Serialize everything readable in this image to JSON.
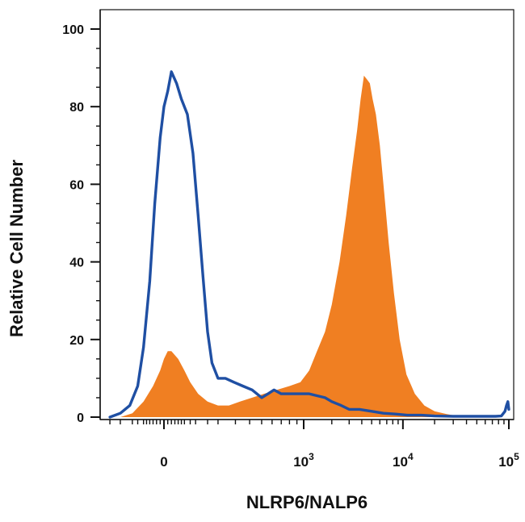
{
  "chart_data": {
    "type": "area",
    "title": "",
    "xlabel": "NLRP6/NALP6",
    "ylabel": "Relative Cell Number",
    "x_scale": "biexponential",
    "xlim": [
      -300,
      100000
    ],
    "ylim": [
      0,
      100
    ],
    "grid": false,
    "legend": "none",
    "y_ticks": [
      {
        "value": 0,
        "label": "0"
      },
      {
        "value": 20,
        "label": "20"
      },
      {
        "value": 40,
        "label": "40"
      },
      {
        "value": 60,
        "label": "60"
      },
      {
        "value": 80,
        "label": "80"
      },
      {
        "value": 100,
        "label": "100"
      }
    ],
    "x_ticks": [
      {
        "value": 0,
        "base": "0",
        "exp": ""
      },
      {
        "value": 1000,
        "base": "10",
        "exp": "3"
      },
      {
        "value": 10000,
        "base": "10",
        "exp": "4"
      },
      {
        "value": 100000,
        "base": "10",
        "exp": "5"
      }
    ],
    "series": [
      {
        "style": "filled",
        "color": "#f07f22",
        "x": [
          -150,
          -100,
          -60,
          -30,
          -10,
          0,
          10,
          20,
          40,
          60,
          80,
          110,
          150,
          200,
          260,
          330,
          420,
          520,
          650,
          800,
          950,
          1150,
          1400,
          1700,
          2000,
          2400,
          2800,
          3200,
          3600,
          3900,
          4200,
          4500,
          4800,
          5100,
          5500,
          6000,
          6600,
          7300,
          8200,
          9300,
          10800,
          13000,
          16000,
          20000,
          26000,
          33000,
          40000
        ],
        "y": [
          0,
          1,
          4,
          8,
          12,
          15,
          17,
          17,
          15,
          12,
          9,
          6,
          4,
          3,
          3,
          4,
          5,
          6,
          7,
          8,
          9,
          12,
          17,
          22,
          29,
          40,
          52,
          64,
          74,
          82,
          88,
          87,
          86,
          82,
          78,
          70,
          58,
          45,
          32,
          20,
          11,
          6,
          3,
          1.5,
          0.8,
          0.3,
          0
        ]
      },
      {
        "style": "line",
        "color": "#1f4fa3",
        "x": [
          -200,
          -150,
          -110,
          -80,
          -60,
          -40,
          -25,
          -10,
          0,
          10,
          20,
          35,
          50,
          70,
          90,
          110,
          130,
          150,
          170,
          200,
          240,
          290,
          350,
          420,
          500,
          560,
          620,
          700,
          800,
          950,
          1150,
          1400,
          1700,
          2000,
          2500,
          3000,
          3800,
          5000,
          6500,
          8500,
          11000,
          15000,
          20000,
          30000,
          45000,
          60000,
          75000,
          85000,
          92000,
          95000,
          98000,
          100000
        ],
        "y": [
          0,
          1,
          3,
          8,
          18,
          35,
          55,
          72,
          80,
          84,
          89,
          86,
          82,
          78,
          68,
          52,
          36,
          22,
          14,
          10,
          10,
          9,
          8,
          7,
          5,
          6,
          7,
          6,
          6,
          6,
          6,
          5.5,
          5,
          4,
          3,
          2,
          2,
          1.5,
          1,
          0.8,
          0.5,
          0.5,
          0.3,
          0.2,
          0.2,
          0.2,
          0.2,
          0.3,
          1.5,
          3,
          4,
          2
        ]
      }
    ]
  }
}
